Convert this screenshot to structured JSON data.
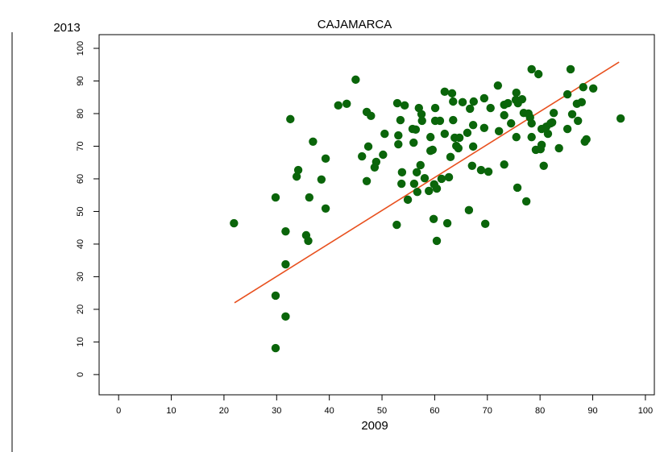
{
  "chart_data": {
    "type": "scatter",
    "title": "CAJAMARCA",
    "x_label": "2009",
    "y_label": "2013",
    "color": "#0a650a",
    "x": [
      21.9,
      29.8,
      29.8,
      29.8,
      31.7,
      31.7,
      31.7,
      32.6,
      33.8,
      34.1,
      35.6,
      36.0,
      36.2,
      36.9,
      38.5,
      39.3,
      39.3,
      41.7,
      43.3,
      45.0,
      46.2,
      47.1,
      47.1,
      47.4,
      47.9,
      48.6,
      48.9,
      50.2,
      50.5,
      52.8,
      52.9,
      53.1,
      53.1,
      53.5,
      53.7,
      53.8,
      54.3,
      54.9,
      55.8,
      56.0,
      56.1,
      56.4,
      56.6,
      56.7,
      57.0,
      57.3,
      57.5,
      57.6,
      58.1,
      58.9,
      59.2,
      59.2,
      59.6,
      59.8,
      59.9,
      60.1,
      60.1,
      60.4,
      60.4,
      61.0,
      61.3,
      61.9,
      61.9,
      62.4,
      62.7,
      63.0,
      63.3,
      63.5,
      63.5,
      63.8,
      64.1,
      64.5,
      64.7,
      65.3,
      66.2,
      66.5,
      66.7,
      67.1,
      67.3,
      67.3,
      67.4,
      68.8,
      69.4,
      69.4,
      69.6,
      70.2,
      70.6,
      72.0,
      72.2,
      73.2,
      73.2,
      73.2,
      73.9,
      74.5,
      75.4,
      75.5,
      75.5,
      75.7,
      75.8,
      76.6,
      76.9,
      77.4,
      77.8,
      78.1,
      78.4,
      78.4,
      78.4,
      79.2,
      79.7,
      80.1,
      80.3,
      80.3,
      80.7,
      81.2,
      81.5,
      82.0,
      82.3,
      82.6,
      83.6,
      85.2,
      85.2,
      85.8,
      86.1,
      87.0,
      87.2,
      87.9,
      88.2,
      88.5,
      88.8,
      90.1,
      95.3
    ],
    "values": [
      46.4,
      54.3,
      24.2,
      8.1,
      17.8,
      43.9,
      33.8,
      78.3,
      60.7,
      62.7,
      42.7,
      41.0,
      54.3,
      71.4,
      59.8,
      66.2,
      50.9,
      82.5,
      83.0,
      90.4,
      66.9,
      59.3,
      80.5,
      69.9,
      79.3,
      63.5,
      65.2,
      67.4,
      73.8,
      45.9,
      83.2,
      73.3,
      70.6,
      78.0,
      58.5,
      62.0,
      82.5,
      53.6,
      75.3,
      71.1,
      58.5,
      75.1,
      62.0,
      56.0,
      81.7,
      64.2,
      79.8,
      77.8,
      60.2,
      56.3,
      72.8,
      68.6,
      68.9,
      47.7,
      58.3,
      77.8,
      81.7,
      57.0,
      41.0,
      77.8,
      60.0,
      86.7,
      73.8,
      46.4,
      60.5,
      66.7,
      86.2,
      83.7,
      78.0,
      72.6,
      70.1,
      69.4,
      72.6,
      83.5,
      74.1,
      50.4,
      81.5,
      64.0,
      69.9,
      76.5,
      83.7,
      62.7,
      84.7,
      75.6,
      46.2,
      62.2,
      81.7,
      88.6,
      74.6,
      64.4,
      82.7,
      79.5,
      83.2,
      77.0,
      84.2,
      72.8,
      86.4,
      57.3,
      83.2,
      84.4,
      80.2,
      53.1,
      80.0,
      78.8,
      93.6,
      72.8,
      77.0,
      68.9,
      92.1,
      69.1,
      70.4,
      75.3,
      64.0,
      76.0,
      73.8,
      77.0,
      77.3,
      80.2,
      69.4,
      75.3,
      85.9,
      93.6,
      79.8,
      83.0,
      77.8,
      83.5,
      88.1,
      71.4,
      72.1,
      87.7,
      78.5
    ],
    "fit": {
      "x": [
        22,
        95
      ],
      "values": [
        22,
        95.8
      ],
      "color": "#e8501e"
    },
    "xlim": [
      -3.7,
      101.7
    ],
    "ylim": [
      -6.2,
      104.2
    ],
    "xticks": [
      0,
      10,
      20,
      30,
      40,
      50,
      60,
      70,
      80,
      90,
      100
    ],
    "yticks": [
      0,
      10,
      20,
      30,
      40,
      50,
      60,
      70,
      80,
      90,
      100
    ]
  }
}
